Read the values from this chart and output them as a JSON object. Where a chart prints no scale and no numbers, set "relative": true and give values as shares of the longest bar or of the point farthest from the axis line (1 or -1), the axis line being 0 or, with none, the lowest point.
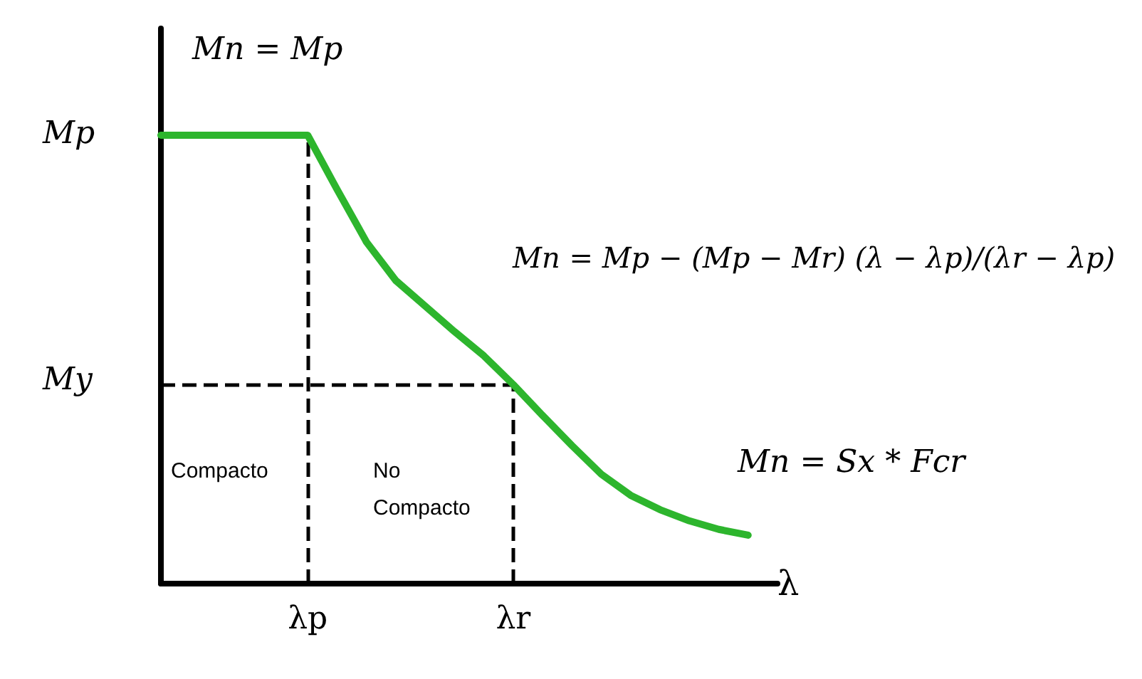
{
  "chart_data": {
    "type": "line",
    "relative": true,
    "xlabel": "λ",
    "categories": [
      null,
      null,
      null,
      null,
      null,
      "λp",
      null,
      null,
      null,
      null,
      null,
      null,
      "λr",
      null,
      null,
      null,
      null,
      null,
      null,
      null,
      null,
      null
    ],
    "series": [
      {
        "color": "#2db52d",
        "values": [
          1,
          1,
          1,
          1,
          1,
          1,
          0.879,
          0.762,
          0.676,
          0.619,
          0.562,
          0.508,
          0.444,
          0.375,
          0.308,
          0.244,
          0.197,
          0.165,
          0.14,
          0.121,
          0.108,
          null
        ]
      }
    ],
    "marker": "none",
    "line_style": "solid",
    "grid": false,
    "ref_lines": [
      {
        "axis": "y",
        "value": 0.444,
        "label": "My",
        "line_style": "dashed",
        "color": "#000000"
      },
      {
        "axis": "x",
        "value": "λp",
        "line_style": "dashed",
        "color": "#000000"
      },
      {
        "axis": "x",
        "value": "λr",
        "line_style": "dashed",
        "color": "#000000"
      }
    ],
    "annotations": [
      "Mp",
      "Mn = Mp",
      "Mn = Mp − (Mp − Mr) (λ − λp)/(λr − λp)",
      "Mn = Sx * Fcr",
      "Compacto",
      "No Compacto"
    ]
  }
}
